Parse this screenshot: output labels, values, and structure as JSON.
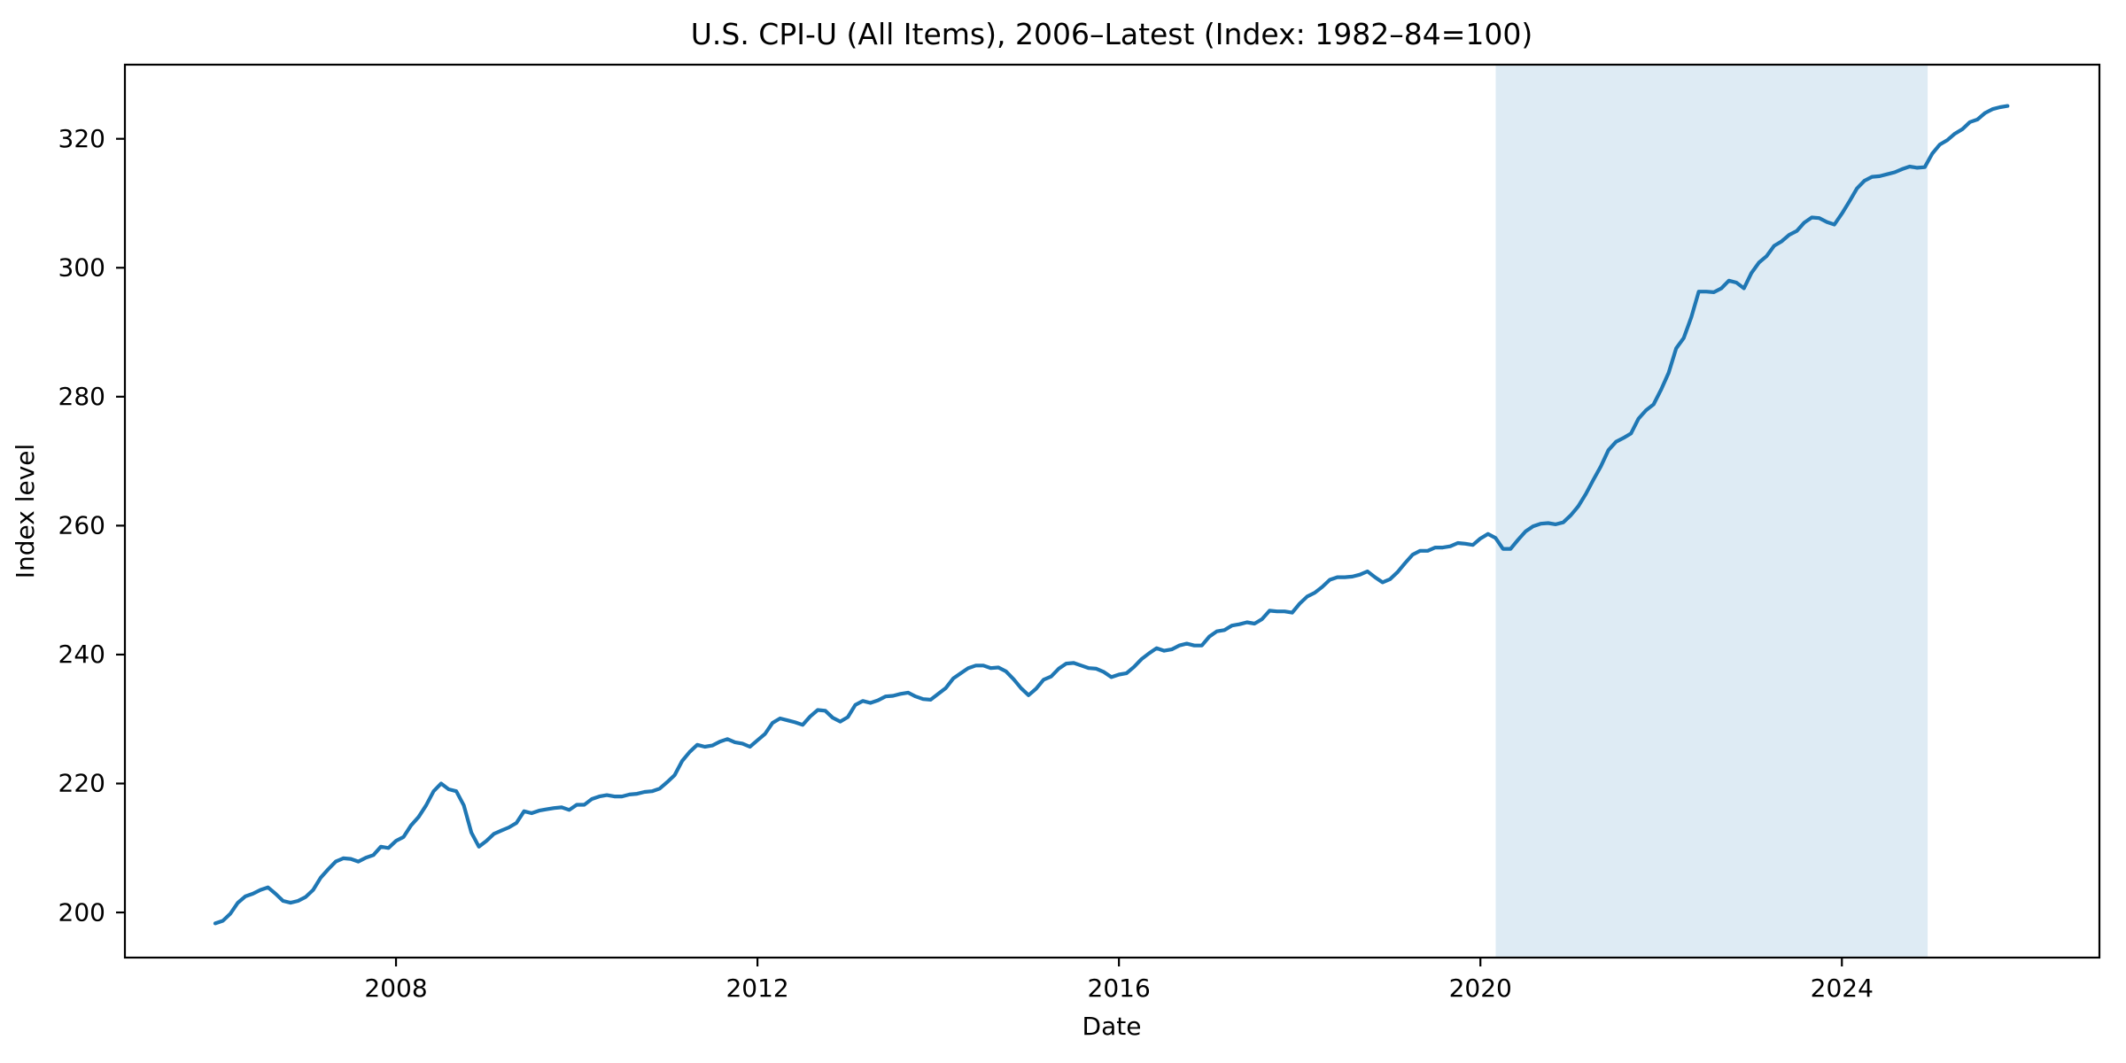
{
  "chart_data": {
    "type": "line",
    "title": "U.S. CPI-U (All Items), 2006–Latest (Index: 1982–84=100)",
    "xlabel": "Date",
    "ylabel": "Index level",
    "x_ticks": [
      2008,
      2012,
      2016,
      2020,
      2024
    ],
    "y_ticks": [
      200,
      220,
      240,
      260,
      280,
      300,
      320
    ],
    "xlim": [
      2005.0,
      2026.85
    ],
    "ylim": [
      193.0,
      331.5
    ],
    "grid": false,
    "legend": "none",
    "background_color": "#ffffff",
    "line_color": "#1f77b4",
    "line_width": 4.2,
    "shaded_region": {
      "x_start": 2020.17,
      "x_end": 2024.95,
      "color": "#1f77b4",
      "opacity": 0.15
    },
    "series": [
      {
        "name": "CPI-U (All Items)",
        "frequency": "monthly",
        "start_year": 2006,
        "start_month": 1,
        "values": [
          198.3,
          198.7,
          199.8,
          201.5,
          202.5,
          202.9,
          203.5,
          203.9,
          202.9,
          201.8,
          201.5,
          201.8,
          202.4,
          203.5,
          205.4,
          206.7,
          207.9,
          208.4,
          208.3,
          207.9,
          208.5,
          208.9,
          210.2,
          210.0,
          211.1,
          211.7,
          213.5,
          214.8,
          216.6,
          218.8,
          220.0,
          219.1,
          218.8,
          216.6,
          212.4,
          210.2,
          211.1,
          212.2,
          212.7,
          213.2,
          213.9,
          215.7,
          215.4,
          215.8,
          216.0,
          216.2,
          216.3,
          215.9,
          216.7,
          216.7,
          217.6,
          218.0,
          218.2,
          218.0,
          218.0,
          218.3,
          218.4,
          218.7,
          218.8,
          219.2,
          220.2,
          221.3,
          223.5,
          224.9,
          226.0,
          225.7,
          225.9,
          226.5,
          226.9,
          226.4,
          226.2,
          225.7,
          226.7,
          227.7,
          229.4,
          230.1,
          229.8,
          229.5,
          229.1,
          230.4,
          231.4,
          231.3,
          230.2,
          229.6,
          230.3,
          232.2,
          232.8,
          232.5,
          232.9,
          233.5,
          233.6,
          233.9,
          234.1,
          233.5,
          233.1,
          233.0,
          233.9,
          234.8,
          236.3,
          237.1,
          237.9,
          238.3,
          238.3,
          237.9,
          238.0,
          237.4,
          236.2,
          234.8,
          233.7,
          234.7,
          236.1,
          236.6,
          237.8,
          238.6,
          238.7,
          238.3,
          237.9,
          237.8,
          237.3,
          236.5,
          236.9,
          237.1,
          238.1,
          239.3,
          240.2,
          241.0,
          240.6,
          240.8,
          241.4,
          241.7,
          241.4,
          241.4,
          242.8,
          243.6,
          243.8,
          244.5,
          244.7,
          245.0,
          244.8,
          245.5,
          246.8,
          246.7,
          246.7,
          246.5,
          247.9,
          249.0,
          249.6,
          250.5,
          251.6,
          252.0,
          252.0,
          252.1,
          252.4,
          252.9,
          252.0,
          251.2,
          251.7,
          252.8,
          254.2,
          255.5,
          256.1,
          256.1,
          256.6,
          256.6,
          256.8,
          257.3,
          257.2,
          257.0,
          258.0,
          258.7,
          258.1,
          256.4,
          256.4,
          257.8,
          259.1,
          259.9,
          260.3,
          260.4,
          260.2,
          260.5,
          261.6,
          263.0,
          264.9,
          267.1,
          269.2,
          271.7,
          273.0,
          273.6,
          274.3,
          276.6,
          277.9,
          278.8,
          281.1,
          283.7,
          287.5,
          289.1,
          292.3,
          296.3,
          296.3,
          296.2,
          296.8,
          298.0,
          297.7,
          296.8,
          299.2,
          300.8,
          301.8,
          303.4,
          304.1,
          305.1,
          305.7,
          307.0,
          307.8,
          307.7,
          307.1,
          306.7,
          308.4,
          310.3,
          312.3,
          313.5,
          314.1,
          314.2,
          314.5,
          314.8,
          315.3,
          315.7,
          315.5,
          315.6,
          317.7,
          319.1,
          319.8,
          320.8,
          321.5,
          322.6,
          323.0,
          324.0,
          324.6,
          324.9,
          325.1
        ]
      }
    ]
  }
}
